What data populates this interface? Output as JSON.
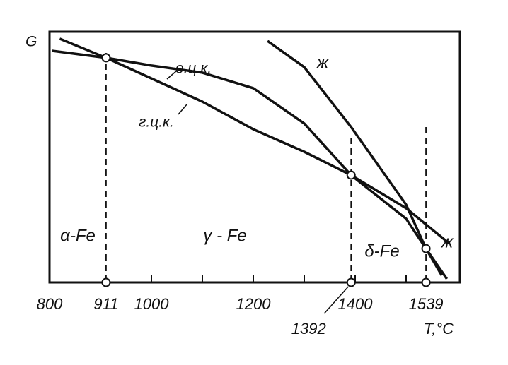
{
  "chart_data": {
    "type": "line",
    "y_label": "G",
    "x_label": "T,°C",
    "xlim": [
      800,
      1600
    ],
    "ylim": [
      0,
      100
    ],
    "xticks": [
      800,
      911,
      1000,
      1200,
      1392,
      1400,
      1539
    ],
    "minor_xticks": [
      1100,
      1300,
      1500
    ],
    "series": [
      {
        "name": "г.ц.к.",
        "color": "#111111",
        "x": [
          820,
          911,
          1100,
          1200,
          1300,
          1392,
          1500,
          1585
        ],
        "values": [
          97.2,
          89.6,
          72.1,
          61.1,
          52.1,
          42.8,
          29.6,
          15.5
        ]
      },
      {
        "name": "о.ц.к.",
        "color": "#111111",
        "x": [
          805,
          911,
          1000,
          1100,
          1200,
          1300,
          1392,
          1500,
          1539,
          1570
        ],
        "values": [
          92.4,
          89.6,
          86.5,
          83.7,
          77.5,
          63.4,
          42.8,
          25.4,
          13.5,
          2.8
        ]
      },
      {
        "name": "ж",
        "color": "#111111",
        "x": [
          1228,
          1300,
          1392,
          1500,
          1539,
          1580
        ],
        "values": [
          96.3,
          85.9,
          62,
          31,
          13.5,
          1.4
        ]
      }
    ],
    "points": {
      "x": [
        911,
        1392,
        1539
      ],
      "values": [
        89.6,
        42.8,
        13.5
      ]
    },
    "transitions": [
      911,
      1392,
      1539
    ],
    "phase_labels": [
      "α-Fe",
      "γ - Fe",
      "δ-Fe",
      "ж"
    ]
  }
}
